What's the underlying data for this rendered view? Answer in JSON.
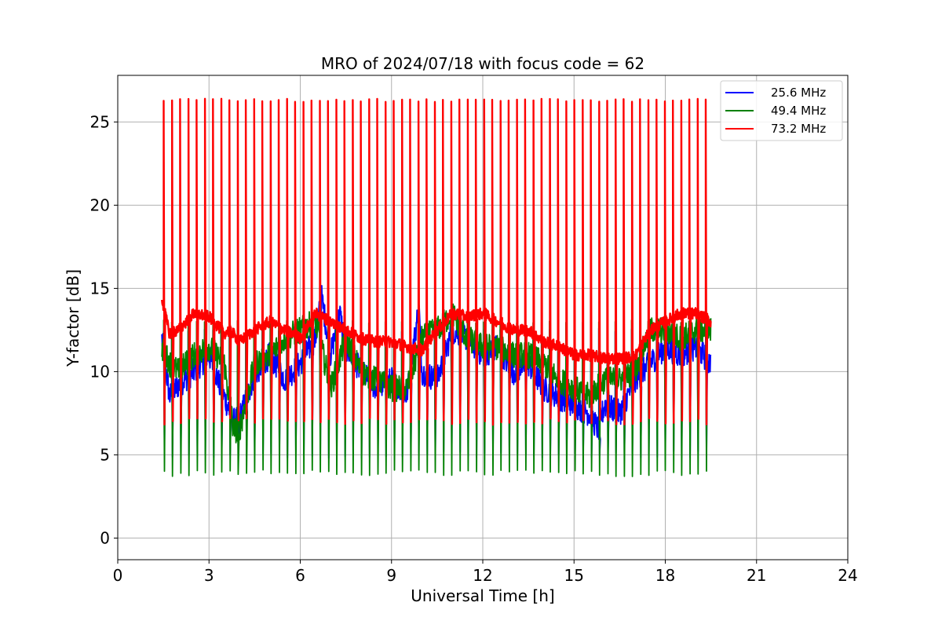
{
  "chart_data": {
    "type": "line",
    "title": "MRO of 2024/07/18 with focus code = 62",
    "xlabel": "Universal Time [h]",
    "ylabel": "Y-factor [dB]",
    "xlim": [
      0,
      24
    ],
    "ylim": [
      -1.3,
      27.8
    ],
    "xticks": [
      0,
      3,
      6,
      9,
      12,
      15,
      18,
      21,
      24
    ],
    "yticks": [
      0,
      5,
      10,
      15,
      20,
      25
    ],
    "grid": true,
    "legend_position": "top-right",
    "x_range_of_data": [
      1.45,
      19.5
    ],
    "spike_interval_h": 0.27,
    "series": [
      {
        "name": "25.6 MHz",
        "color": "#0000ff",
        "baseline": {
          "x": [
            1.45,
            1.7,
            2.0,
            2.5,
            3.0,
            3.5,
            3.8,
            4.0,
            4.5,
            5.0,
            5.5,
            6.0,
            6.5,
            6.7,
            7.0,
            7.3,
            7.5,
            8.0,
            8.5,
            9.0,
            9.5,
            9.9,
            10.0,
            10.5,
            11.0,
            11.5,
            12.0,
            12.5,
            13.0,
            13.5,
            14.0,
            14.5,
            15.0,
            15.5,
            15.8,
            16.0,
            16.5,
            17.0,
            17.5,
            18.0,
            18.5,
            19.0,
            19.5
          ],
          "y": [
            12.0,
            8.5,
            9.2,
            10.0,
            11.0,
            8.5,
            7.0,
            7.2,
            9.8,
            11.0,
            9.5,
            10.5,
            12.0,
            14.5,
            11.0,
            13.5,
            11.5,
            10.0,
            9.0,
            9.5,
            8.5,
            14.0,
            10.0,
            9.5,
            12.5,
            12.0,
            11.0,
            11.5,
            10.0,
            10.5,
            9.0,
            8.5,
            8.0,
            7.5,
            6.5,
            8.0,
            7.5,
            9.5,
            10.5,
            11.5,
            11.0,
            11.5,
            10.5
          ]
        },
        "spike_top": 12.5,
        "spike_bottom": 5.0
      },
      {
        "name": "49.4 MHz",
        "color": "#008000",
        "baseline": {
          "x": [
            1.45,
            1.7,
            2.0,
            2.5,
            3.0,
            3.5,
            3.8,
            4.0,
            4.5,
            5.0,
            5.5,
            6.0,
            6.5,
            7.0,
            7.5,
            8.0,
            8.5,
            9.0,
            9.5,
            10.0,
            10.5,
            11.0,
            11.5,
            12.0,
            12.5,
            13.0,
            13.5,
            14.0,
            14.5,
            15.0,
            15.5,
            16.0,
            16.5,
            17.0,
            17.5,
            18.0,
            18.5,
            19.0,
            19.5
          ],
          "y": [
            11.5,
            10.5,
            10.0,
            11.0,
            11.5,
            10.5,
            6.5,
            6.5,
            10.5,
            11.0,
            12.0,
            12.5,
            13.0,
            9.0,
            12.0,
            10.0,
            9.5,
            9.0,
            9.0,
            12.0,
            12.5,
            13.5,
            12.0,
            11.5,
            11.5,
            11.0,
            11.0,
            10.5,
            9.5,
            9.0,
            8.5,
            9.5,
            9.5,
            10.0,
            12.5,
            12.5,
            12.0,
            12.5,
            12.5
          ]
        },
        "spike_top": 13.0,
        "spike_bottom": 3.9
      },
      {
        "name": "73.2 MHz",
        "color": "#ff0000",
        "baseline": {
          "x": [
            1.45,
            1.7,
            2.0,
            2.5,
            3.0,
            3.5,
            3.7,
            4.0,
            4.5,
            5.0,
            5.5,
            6.0,
            6.5,
            7.0,
            7.5,
            8.0,
            8.5,
            9.0,
            9.5,
            10.0,
            10.5,
            11.0,
            11.5,
            12.0,
            12.5,
            13.0,
            13.5,
            14.0,
            14.5,
            15.0,
            15.5,
            16.0,
            16.5,
            17.0,
            17.5,
            18.0,
            18.5,
            19.0,
            19.5
          ],
          "y": [
            14.3,
            12.3,
            12.5,
            13.5,
            13.3,
            12.3,
            12.5,
            11.8,
            12.5,
            13.0,
            12.5,
            12.0,
            13.5,
            13.0,
            12.5,
            12.0,
            11.8,
            11.8,
            11.5,
            11.3,
            12.5,
            13.5,
            13.3,
            13.5,
            13.0,
            12.5,
            12.5,
            11.8,
            11.5,
            11.0,
            11.0,
            10.8,
            10.8,
            10.9,
            12.5,
            13.0,
            13.5,
            13.5,
            13.0
          ]
        },
        "spike_top": 26.3,
        "spike_bottom": 7.0
      }
    ]
  }
}
